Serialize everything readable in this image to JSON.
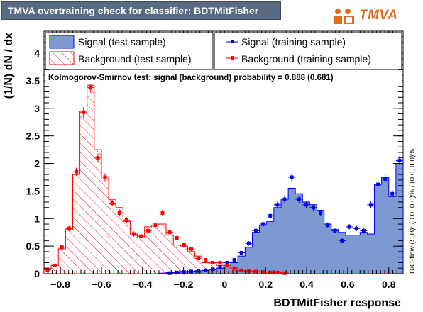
{
  "window": {
    "title": "TMVA overtraining check for classifier: BDTMitFisher",
    "logo_text": "TMVA"
  },
  "legend": {
    "signal_test": "Signal (test sample)",
    "background_test": "Background (test sample)",
    "signal_train": "Signal (training sample)",
    "background_train": "Background (training sample)"
  },
  "ks_text": "Kolmogorov-Smirnov test: signal (background) probability = 0.888 (0.681)",
  "overflow_text": "U/O-flow (S,B): (0.0, 0.0)% / (0.0, 0.0)%",
  "colors": {
    "signal_fill": "#7d99d1",
    "signal_line": "#0000ee",
    "background_line": "#ff0000",
    "title_bg": "#5a6a82"
  },
  "chart_data": {
    "type": "bar",
    "xlabel": "BDTMitFisher response",
    "ylabel": "(1/N) dN / dx",
    "xlim": [
      -0.88,
      0.87
    ],
    "ylim": [
      0,
      4.4
    ],
    "x_ticks": [
      -0.8,
      -0.6,
      -0.4,
      -0.2,
      0,
      0.2,
      0.4,
      0.6,
      0.8
    ],
    "x_tick_labels": [
      "−0.8",
      "−0.6",
      "−0.4",
      "−0.2",
      "0",
      "0.2",
      "0.4",
      "0.6",
      "0.8"
    ],
    "y_ticks": [
      0,
      0.5,
      1,
      1.5,
      2,
      2.5,
      3,
      3.5,
      4
    ],
    "y_tick_labels": [
      "0",
      "0.5",
      "1",
      "1.5",
      "2",
      "2.5",
      "3",
      "3.5",
      "4"
    ],
    "bins": {
      "start": -0.88,
      "width": 0.035,
      "count": 50
    },
    "series": [
      {
        "name": "Signal (test sample)",
        "style": "filled-histogram",
        "values": [
          0,
          0,
          0,
          0,
          0,
          0,
          0,
          0,
          0,
          0,
          0,
          0,
          0,
          0,
          0,
          0,
          0.01,
          0.02,
          0.03,
          0.04,
          0.04,
          0.05,
          0.06,
          0.07,
          0.1,
          0.15,
          0.2,
          0.32,
          0.48,
          0.75,
          0.88,
          0.95,
          1.2,
          1.35,
          1.55,
          1.45,
          1.3,
          1.25,
          1.15,
          0.9,
          0.8,
          0.75,
          0.7,
          0.7,
          0.75,
          0.72,
          1.62,
          1.75,
          1.4,
          2.0
        ]
      },
      {
        "name": "Background (test sample)",
        "style": "hatched-histogram",
        "values": [
          0.1,
          0.15,
          0.45,
          0.8,
          1.8,
          2.95,
          3.42,
          2.25,
          1.75,
          1.35,
          1.2,
          0.95,
          0.72,
          0.65,
          0.85,
          0.88,
          0.9,
          0.7,
          0.52,
          0.5,
          0.4,
          0.32,
          0.2,
          0.18,
          0.15,
          0.12,
          0.1,
          0.05,
          0.04,
          0.04,
          0.03,
          0.03,
          0.02,
          0.01,
          0,
          0,
          0,
          0,
          0,
          0,
          0,
          0,
          0,
          0,
          0,
          0,
          0,
          0,
          0,
          0
        ]
      },
      {
        "name": "Signal (training sample)",
        "style": "points",
        "values": [
          null,
          null,
          null,
          null,
          null,
          null,
          null,
          null,
          null,
          null,
          null,
          null,
          null,
          null,
          null,
          null,
          null,
          0.01,
          0.02,
          0.03,
          0.04,
          0.05,
          0.06,
          0.08,
          0.12,
          0.2,
          0.25,
          0.38,
          0.55,
          0.78,
          0.9,
          1.05,
          1.25,
          1.35,
          1.75,
          1.35,
          1.25,
          1.2,
          1.1,
          0.88,
          0.78,
          0.6,
          0.85,
          0.82,
          0.78,
          1.25,
          1.62,
          1.72,
          1.45,
          2.05
        ]
      },
      {
        "name": "Background (training sample)",
        "style": "points",
        "values": [
          0.07,
          0.15,
          0.48,
          0.82,
          1.85,
          2.93,
          3.38,
          2.1,
          1.75,
          1.28,
          1.1,
          0.97,
          0.72,
          0.68,
          0.78,
          0.88,
          1.1,
          0.75,
          0.65,
          0.52,
          0.45,
          0.28,
          0.25,
          0.2,
          0.2,
          0.15,
          0.1,
          0.06,
          0.05,
          0.04,
          0.03,
          0.02,
          0.02,
          0.01,
          null,
          null,
          null,
          null,
          null,
          null,
          null,
          null,
          null,
          null,
          null,
          null,
          null,
          null,
          null,
          null
        ]
      }
    ]
  }
}
